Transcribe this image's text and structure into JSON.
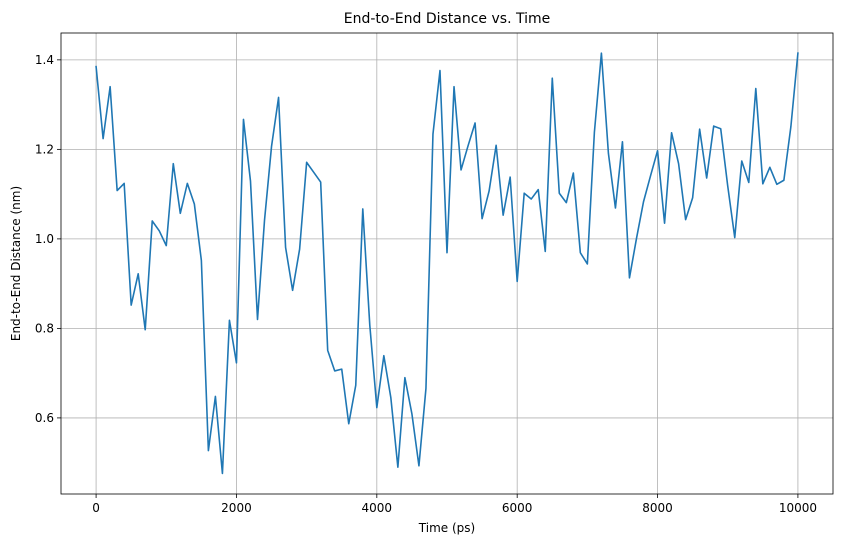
{
  "chart_data": {
    "type": "line",
    "title": "End-to-End Distance vs. Time",
    "xlabel": "Time (ps)",
    "ylabel": "End-to-End Distance (nm)",
    "xlim": [
      -500,
      10500
    ],
    "ylim": [
      0.43,
      1.46
    ],
    "xticks": [
      0,
      2000,
      4000,
      6000,
      8000,
      10000
    ],
    "xtick_labels": [
      "0",
      "2000",
      "4000",
      "6000",
      "8000",
      "10000"
    ],
    "yticks": [
      0.6,
      0.8,
      1.0,
      1.2,
      1.4
    ],
    "ytick_labels": [
      "0.6",
      "0.8",
      "1.0",
      "1.2",
      "1.4"
    ],
    "grid": true,
    "series": [
      {
        "color": "#1f77b4",
        "x": [
          0,
          100,
          200,
          300,
          400,
          500,
          600,
          700,
          800,
          900,
          1000,
          1100,
          1200,
          1300,
          1400,
          1500,
          1600,
          1700,
          1800,
          1900,
          2000,
          2100,
          2200,
          2300,
          2400,
          2500,
          2600,
          2700,
          2800,
          2900,
          3000,
          3100,
          3200,
          3300,
          3400,
          3500,
          3600,
          3700,
          3800,
          3900,
          4000,
          4100,
          4200,
          4300,
          4400,
          4500,
          4600,
          4700,
          4800,
          4900,
          5000,
          5100,
          5200,
          5300,
          5400,
          5500,
          5600,
          5700,
          5800,
          5900,
          6000,
          6100,
          6200,
          6300,
          6400,
          6500,
          6600,
          6700,
          6800,
          6900,
          7000,
          7100,
          7200,
          7300,
          7400,
          7500,
          7600,
          7700,
          7800,
          7900,
          8000,
          8100,
          8200,
          8300,
          8400,
          8500,
          8600,
          8700,
          8800,
          8900,
          9000,
          9100,
          9200,
          9300,
          9400,
          9500,
          9600,
          9700,
          9800,
          9900,
          10000
        ],
        "y": [
          1.385,
          1.224,
          1.34,
          1.108,
          1.124,
          0.852,
          0.922,
          0.797,
          1.04,
          1.018,
          0.985,
          1.168,
          1.057,
          1.124,
          1.078,
          0.952,
          0.527,
          0.648,
          0.476,
          0.818,
          0.723,
          1.267,
          1.129,
          0.82,
          1.042,
          1.207,
          1.316,
          0.981,
          0.885,
          0.977,
          1.171,
          1.149,
          1.127,
          0.751,
          0.705,
          0.709,
          0.587,
          0.673,
          1.067,
          0.807,
          0.623,
          0.739,
          0.645,
          0.49,
          0.69,
          0.609,
          0.493,
          0.666,
          1.234,
          1.376,
          0.969,
          1.34,
          1.154,
          1.208,
          1.259,
          1.045,
          1.107,
          1.209,
          1.053,
          1.138,
          0.905,
          1.102,
          1.089,
          1.11,
          0.972,
          1.359,
          1.102,
          1.081,
          1.147,
          0.969,
          0.944,
          1.238,
          1.415,
          1.191,
          1.069,
          1.217,
          0.913,
          1.001,
          1.083,
          1.141,
          1.197,
          1.035,
          1.237,
          1.168,
          1.043,
          1.092,
          1.245,
          1.136,
          1.252,
          1.246,
          1.118,
          1.003,
          1.174,
          1.126,
          1.336,
          1.123,
          1.16,
          1.122,
          1.131,
          1.251,
          1.415
        ]
      }
    ]
  }
}
